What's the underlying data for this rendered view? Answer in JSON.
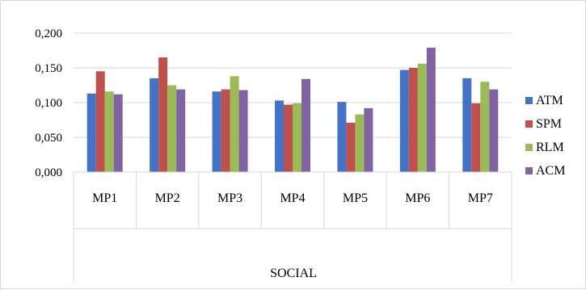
{
  "chart_data": {
    "type": "bar",
    "group_label": "SOCIAL",
    "categories": [
      "MP1",
      "MP2",
      "MP3",
      "MP4",
      "MP5",
      "MP6",
      "MP7"
    ],
    "series": [
      {
        "name": "ATM",
        "color": "#4472c4",
        "values": [
          0.113,
          0.135,
          0.116,
          0.103,
          0.101,
          0.147,
          0.135
        ]
      },
      {
        "name": "SPM",
        "color": "#c0504d",
        "values": [
          0.145,
          0.165,
          0.119,
          0.097,
          0.071,
          0.15,
          0.099
        ]
      },
      {
        "name": "RLM",
        "color": "#9bbb59",
        "values": [
          0.116,
          0.125,
          0.138,
          0.099,
          0.083,
          0.156,
          0.13
        ]
      },
      {
        "name": "ACM",
        "color": "#8064a2",
        "values": [
          0.112,
          0.119,
          0.118,
          0.134,
          0.092,
          0.179,
          0.119
        ]
      }
    ],
    "y_ticks": [
      "0,000",
      "0,050",
      "0,100",
      "0,150",
      "0,200"
    ],
    "ylim": [
      0,
      0.2
    ],
    "grid": true,
    "legend_position": "right"
  }
}
